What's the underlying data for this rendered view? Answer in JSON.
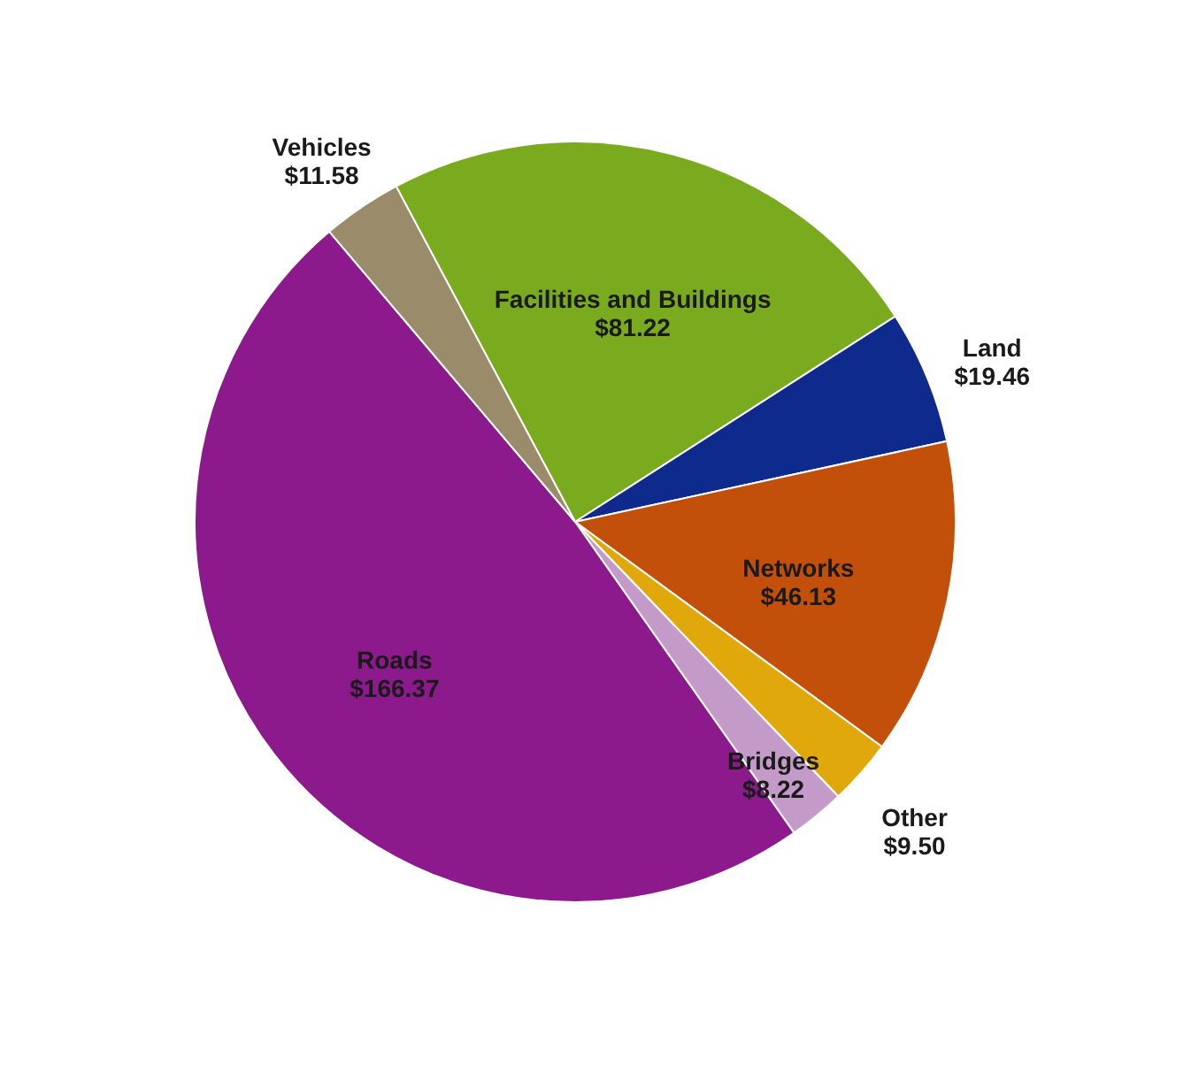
{
  "chart_data": {
    "type": "pie",
    "categories": [
      "Facilities and Buildings",
      "Land",
      "Networks",
      "Other",
      "Bridges",
      "Roads",
      "Vehicles"
    ],
    "values": [
      81.22,
      19.46,
      46.13,
      9.5,
      8.22,
      166.37,
      11.58
    ],
    "value_labels": [
      "$81.22",
      "$19.46",
      "$46.13",
      "$9.50",
      "$8.22",
      "$166.37",
      "$11.58"
    ],
    "colors": [
      "#7aab1e",
      "#0d2a8c",
      "#c2500a",
      "#e0a80a",
      "#c49ac8",
      "#8c1a8c",
      "#9a8c6a"
    ],
    "legend": false
  }
}
